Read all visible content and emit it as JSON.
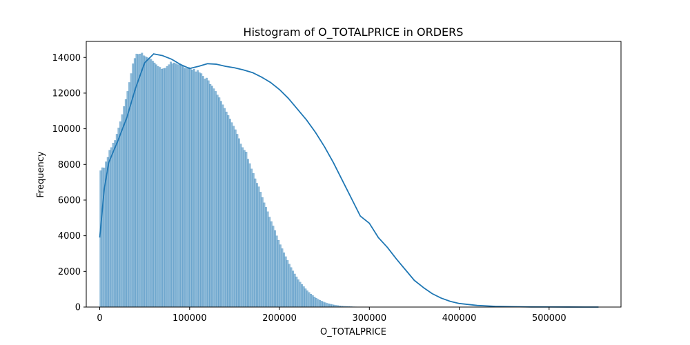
{
  "chart_data": {
    "type": "bar",
    "title": "Histogram of O_TOTALPRICE in ORDERS",
    "xlabel": "O_TOTALPRICE",
    "ylabel": "Frequency",
    "xlim": [
      -15000,
      580000
    ],
    "ylim": [
      0,
      14900
    ],
    "xticks": [
      0,
      100000,
      200000,
      300000,
      400000,
      500000
    ],
    "xtick_labels": [
      "0",
      "100000",
      "200000",
      "300000",
      "400000",
      "500000"
    ],
    "yticks": [
      0,
      2000,
      4000,
      6000,
      8000,
      10000,
      12000,
      14000
    ],
    "ytick_labels": [
      "0",
      "2000",
      "4000",
      "6000",
      "8000",
      "10000",
      "12000",
      "14000"
    ],
    "grid": false,
    "bar_color": "#1f77b4",
    "kde_color": "#1f77b4",
    "bin_start": 0,
    "bin_width": 2000,
    "bin_counts": [
      7650,
      7820,
      7810,
      8150,
      8400,
      8800,
      8950,
      9200,
      9350,
      9700,
      10050,
      10400,
      10800,
      11250,
      11650,
      12100,
      12600,
      13100,
      13650,
      13950,
      14200,
      14180,
      14200,
      14250,
      14100,
      14050,
      14000,
      13950,
      13900,
      13800,
      13700,
      13600,
      13500,
      13450,
      13350,
      13380,
      13400,
      13500,
      13600,
      13750,
      13650,
      13700,
      13650,
      13600,
      13650,
      13550,
      13500,
      13400,
      13380,
      13450,
      13400,
      13300,
      13350,
      13200,
      13280,
      13150,
      13100,
      12950,
      12800,
      12850,
      12700,
      12500,
      12400,
      12250,
      12100,
      11900,
      11750,
      11550,
      11350,
      11150,
      10950,
      10750,
      10550,
      10350,
      10150,
      9950,
      9700,
      9450,
      9150,
      8950,
      8800,
      8700,
      8300,
      8050,
      7750,
      7500,
      7200,
      6950,
      6750,
      6450,
      6150,
      5850,
      5600,
      5350,
      5050,
      4800,
      4550,
      4300,
      4000,
      3750,
      3500,
      3280,
      3050,
      2830,
      2620,
      2410,
      2220,
      2030,
      1860,
      1700,
      1540,
      1400,
      1270,
      1150,
      1030,
      920,
      820,
      730,
      650,
      570,
      500,
      440,
      385,
      335,
      290,
      250,
      215,
      185,
      160,
      138,
      118,
      100,
      85,
      72,
      61,
      52,
      44,
      37,
      31,
      26,
      22,
      18,
      15,
      13,
      11,
      9,
      7,
      6,
      5,
      4,
      4,
      3,
      3,
      2,
      2,
      2,
      1,
      1,
      1,
      1,
      1,
      1,
      1,
      0,
      0,
      0,
      0,
      0,
      0,
      0,
      0,
      0,
      0,
      0,
      0,
      0,
      0,
      0,
      0,
      0,
      0,
      0,
      0,
      0,
      0,
      0,
      0,
      0,
      0,
      0,
      0,
      0,
      0,
      0,
      0,
      0,
      0,
      0,
      0,
      0,
      0,
      0,
      0,
      0,
      0,
      0,
      0,
      0,
      0,
      0,
      0,
      0,
      0,
      0,
      0,
      0,
      0,
      0,
      0,
      0,
      0,
      0,
      0,
      0,
      0,
      0,
      0,
      0,
      0,
      0,
      0,
      0,
      0,
      0,
      0,
      0,
      0,
      0,
      0,
      0,
      0,
      0,
      0,
      0,
      0,
      0,
      0,
      0,
      0,
      0,
      0,
      0,
      0,
      0,
      0,
      0,
      0,
      0,
      0,
      0,
      0,
      0,
      0,
      0,
      0,
      0,
      0,
      0,
      0,
      0,
      0,
      0,
      0,
      0,
      0,
      0,
      0,
      0,
      0,
      0,
      0,
      0,
      0,
      0,
      0,
      0,
      0,
      0,
      0
    ],
    "kde_points": [
      [
        0,
        3900
      ],
      [
        5000,
        6600
      ],
      [
        10000,
        8100
      ],
      [
        20000,
        9300
      ],
      [
        30000,
        10600
      ],
      [
        40000,
        12300
      ],
      [
        50000,
        13700
      ],
      [
        60000,
        14200
      ],
      [
        70000,
        14100
      ],
      [
        80000,
        13900
      ],
      [
        90000,
        13600
      ],
      [
        100000,
        13380
      ],
      [
        110000,
        13500
      ],
      [
        120000,
        13650
      ],
      [
        130000,
        13620
      ],
      [
        140000,
        13500
      ],
      [
        150000,
        13420
      ],
      [
        160000,
        13300
      ],
      [
        170000,
        13150
      ],
      [
        180000,
        12900
      ],
      [
        190000,
        12600
      ],
      [
        200000,
        12200
      ],
      [
        210000,
        11700
      ],
      [
        220000,
        11100
      ],
      [
        230000,
        10500
      ],
      [
        240000,
        9800
      ],
      [
        250000,
        9000
      ],
      [
        260000,
        8100
      ],
      [
        270000,
        7100
      ],
      [
        280000,
        6100
      ],
      [
        290000,
        5100
      ],
      [
        300000,
        4700
      ],
      [
        310000,
        3900
      ],
      [
        320000,
        3350
      ],
      [
        330000,
        2700
      ],
      [
        340000,
        2100
      ],
      [
        350000,
        1500
      ],
      [
        360000,
        1100
      ],
      [
        370000,
        750
      ],
      [
        380000,
        500
      ],
      [
        390000,
        320
      ],
      [
        400000,
        200
      ],
      [
        420000,
        90
      ],
      [
        440000,
        40
      ],
      [
        460000,
        18
      ],
      [
        480000,
        8
      ],
      [
        500000,
        4
      ],
      [
        520000,
        2
      ],
      [
        540000,
        1
      ],
      [
        555000,
        0
      ]
    ]
  }
}
